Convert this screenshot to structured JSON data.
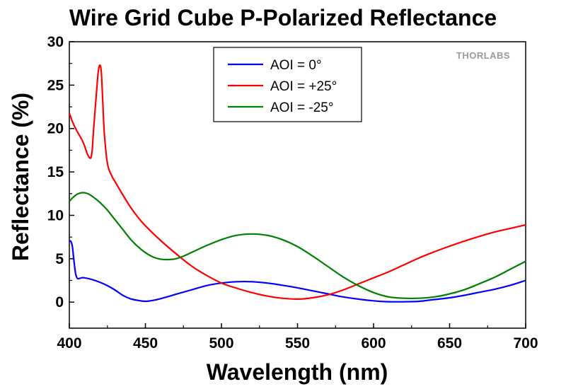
{
  "chart_data": {
    "type": "line",
    "title": "Wire Grid Cube P-Polarized Reflectance",
    "xlabel": "Wavelength (nm)",
    "ylabel": "Reflectance (%)",
    "xlim": [
      400,
      700
    ],
    "ylim": [
      -3,
      30
    ],
    "xticks": [
      400,
      450,
      500,
      550,
      600,
      650,
      700
    ],
    "yticks": [
      0,
      5,
      10,
      15,
      20,
      25,
      30
    ],
    "grid": false,
    "legend_position": "top-center",
    "watermark": "THORLABS",
    "series": [
      {
        "name": "AOI = 0°",
        "color": "#0000ff",
        "x": [
          400,
          401,
          402,
          403,
          404,
          405,
          406,
          408,
          410,
          415,
          420,
          425,
          430,
          435,
          440,
          445,
          450,
          455,
          460,
          470,
          480,
          490,
          500,
          510,
          520,
          530,
          540,
          550,
          560,
          570,
          580,
          590,
          600,
          610,
          620,
          630,
          640,
          650,
          660,
          670,
          680,
          690,
          700
        ],
        "y": [
          7.0,
          7.0,
          6.4,
          4.8,
          3.4,
          2.8,
          2.7,
          2.8,
          2.8,
          2.6,
          2.3,
          1.9,
          1.4,
          0.8,
          0.4,
          0.2,
          0.1,
          0.2,
          0.4,
          0.9,
          1.4,
          1.9,
          2.2,
          2.35,
          2.35,
          2.2,
          1.95,
          1.65,
          1.3,
          0.95,
          0.6,
          0.35,
          0.15,
          0.05,
          0.05,
          0.1,
          0.3,
          0.5,
          0.8,
          1.15,
          1.5,
          1.95,
          2.5
        ]
      },
      {
        "name": "AOI = +25°",
        "color": "#ff0000",
        "x": [
          400,
          402,
          405,
          408,
          410,
          412,
          414,
          415,
          416,
          418,
          419,
          420,
          421,
          422,
          423,
          425,
          428,
          430,
          435,
          440,
          445,
          450,
          460,
          470,
          480,
          490,
          500,
          510,
          520,
          530,
          540,
          550,
          560,
          570,
          580,
          590,
          600,
          610,
          620,
          630,
          640,
          650,
          660,
          670,
          680,
          690,
          700
        ],
        "y": [
          21.8,
          20.8,
          19.7,
          18.8,
          18.0,
          17.0,
          16.6,
          17.5,
          20.0,
          24.5,
          26.5,
          27.3,
          26.5,
          23.0,
          19.5,
          16.0,
          14.5,
          13.9,
          12.4,
          11.0,
          9.8,
          8.8,
          7.1,
          5.6,
          4.2,
          3.1,
          2.2,
          1.6,
          1.1,
          0.7,
          0.45,
          0.35,
          0.5,
          0.85,
          1.4,
          2.1,
          2.8,
          3.5,
          4.3,
          5.1,
          5.8,
          6.45,
          7.05,
          7.6,
          8.1,
          8.5,
          8.9
        ]
      },
      {
        "name": "AOI = -25°",
        "color": "#008000",
        "x": [
          400,
          401,
          402,
          404,
          406,
          408,
          410,
          412,
          415,
          420,
          425,
          430,
          435,
          440,
          445,
          450,
          455,
          460,
          465,
          470,
          475,
          480,
          490,
          500,
          510,
          520,
          530,
          540,
          550,
          560,
          570,
          580,
          590,
          600,
          610,
          620,
          630,
          640,
          650,
          660,
          670,
          680,
          690,
          700
        ],
        "y": [
          11.6,
          11.8,
          12.0,
          12.3,
          12.5,
          12.6,
          12.6,
          12.5,
          12.2,
          11.5,
          10.6,
          9.5,
          8.4,
          7.3,
          6.4,
          5.7,
          5.2,
          4.95,
          4.9,
          5.0,
          5.3,
          5.7,
          6.5,
          7.2,
          7.7,
          7.85,
          7.7,
          7.2,
          6.4,
          5.3,
          4.1,
          2.9,
          1.9,
          1.1,
          0.6,
          0.45,
          0.45,
          0.6,
          0.95,
          1.45,
          2.15,
          2.9,
          3.8,
          4.7
        ]
      }
    ]
  }
}
